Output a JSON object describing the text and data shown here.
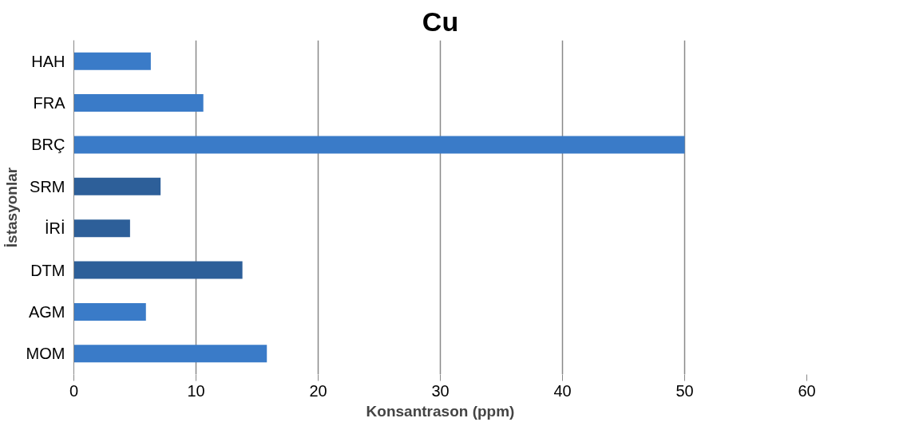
{
  "chart_data": {
    "type": "bar",
    "orientation": "horizontal",
    "title": "Cu",
    "xlabel": "Konsantrason (ppm)",
    "ylabel": "İstasyonlar",
    "categories": [
      "HAH",
      "FRA",
      "BRÇ",
      "SRM",
      "İRİ",
      "DTM",
      "AGM",
      "MOM"
    ],
    "values": [
      6.3,
      10.6,
      50,
      7.1,
      4.6,
      13.8,
      5.9,
      15.8
    ],
    "colors": [
      "#3a7bc8",
      "#3a7bc8",
      "#3a7bc8",
      "#2d5f99",
      "#2d5f99",
      "#2d5f99",
      "#3a7bc8",
      "#3a7bc8"
    ],
    "xlim": [
      0,
      60
    ],
    "xticks": [
      0,
      10,
      20,
      30,
      40,
      50,
      60
    ],
    "grid": "x"
  }
}
